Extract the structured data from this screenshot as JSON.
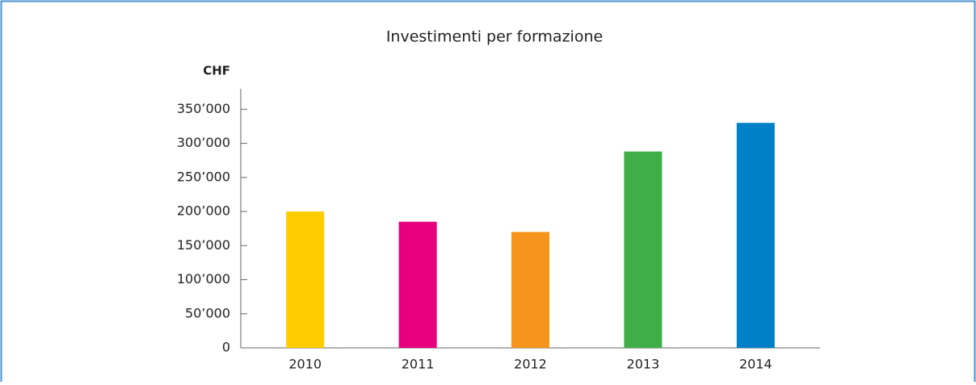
{
  "chart_data": {
    "type": "bar",
    "title": "Investimenti per formazione",
    "y_label": "CHF",
    "categories": [
      "2010",
      "2011",
      "2012",
      "2013",
      "2014"
    ],
    "values": [
      200000,
      185000,
      170000,
      288000,
      330000
    ],
    "colors": [
      "#ffcc00",
      "#e6007e",
      "#f7941d",
      "#3fae49",
      "#0080c6"
    ],
    "ylim": [
      0,
      380000
    ],
    "yticks": [
      0,
      {
        "value": 50000,
        "label": "50’000"
      },
      {
        "value": 100000,
        "label": "100’000"
      },
      {
        "value": 150000,
        "label": "150’000"
      },
      {
        "value": 200000,
        "label": "200’000"
      },
      {
        "value": 250000,
        "label": "250’000"
      },
      {
        "value": 300000,
        "label": "300’000"
      },
      {
        "value": 350000,
        "label": "350’000"
      }
    ],
    "grid": false
  }
}
